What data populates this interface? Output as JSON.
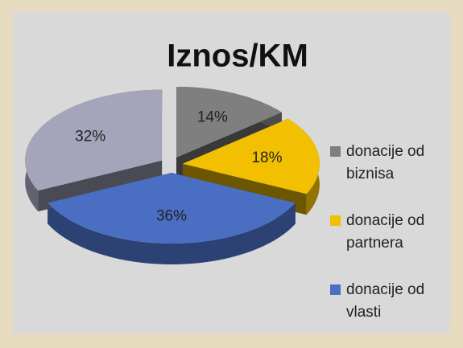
{
  "chart_data": {
    "type": "pie3d",
    "title": "Iznos/KM",
    "categories": [
      "donacije od biznisa",
      "donacije od partnera",
      "donacije od vlasti",
      null
    ],
    "values": [
      14,
      18,
      36,
      32
    ],
    "value_labels": [
      "14%",
      "18%",
      "36%",
      "32%"
    ],
    "colors": [
      "#7f7f7f",
      "#f2c000",
      "#4a6ec2",
      "#a4a4ba"
    ],
    "legend": "right"
  }
}
